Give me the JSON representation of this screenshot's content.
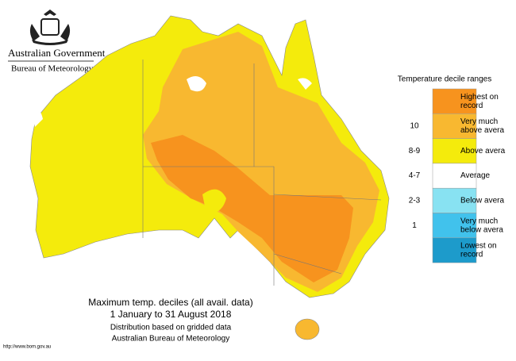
{
  "header": {
    "title": "Australian Government",
    "subtitle": "Bureau of Meteorology"
  },
  "legend": {
    "title": "Temperature decile ranges",
    "items": [
      {
        "range": null,
        "lines": [
          "Highest on",
          "record"
        ],
        "color": "#f7931e"
      },
      {
        "range": "10",
        "lines": [
          "Very much",
          "above avera"
        ],
        "color": "#f8b830"
      },
      {
        "range": "8-9",
        "lines": [
          "Above avera"
        ],
        "color": "#f4eb0c"
      },
      {
        "range": "4-7",
        "lines": [
          "Average"
        ],
        "color": "#ffffff"
      },
      {
        "range": "2-3",
        "lines": [
          "Below avera"
        ],
        "color": "#88e2f2"
      },
      {
        "range": "1",
        "lines": [
          "Very much",
          "below avera"
        ],
        "color": "#41c2ec"
      },
      {
        "range": null,
        "lines": [
          "Lowest on",
          "record"
        ],
        "color": "#1d9bcb"
      }
    ]
  },
  "caption": {
    "lines": [
      "Maximum temp. deciles (all avail. data)",
      "1 January to 31 August 2018",
      "Distribution based on gridded data",
      "Australian Bureau of Meteorology"
    ]
  },
  "footer": {
    "url": "http://www.bom.gov.au"
  }
}
